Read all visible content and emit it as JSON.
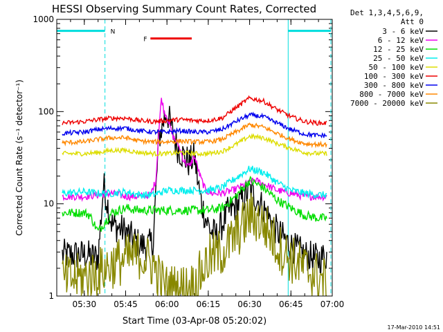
{
  "chart_data": {
    "type": "line",
    "title": "HESSI Observing Summary Count Rates, Corrected",
    "xlabel": "Start Time (03-Apr-08 05:20:02)",
    "ylabel": "Corrected Count Rate (s⁻¹ detector⁻¹)",
    "footer": "17-Mar-2010 14:51",
    "x_unit": "minutes after 05:20:02",
    "xlim": [
      0,
      100
    ],
    "ylim": [
      1,
      1000
    ],
    "y_scale": "log",
    "x_ticks": [
      {
        "label": "05:30",
        "x": 10
      },
      {
        "label": "05:45",
        "x": 25
      },
      {
        "label": "06:00",
        "x": 40
      },
      {
        "label": "06:15",
        "x": 55
      },
      {
        "label": "06:30",
        "x": 70
      },
      {
        "label": "06:45",
        "x": 85
      },
      {
        "label": "07:00",
        "x": 100
      }
    ],
    "y_ticks": [
      {
        "label": "1",
        "y": 1
      },
      {
        "label": "10",
        "y": 10
      },
      {
        "label": "100",
        "y": 100
      },
      {
        "label": "1000",
        "y": 1000
      }
    ],
    "legend_header": [
      "Det 1,3,4,5,6,9,",
      "Att 0"
    ],
    "legend_position": "right",
    "series": [
      {
        "name": "3 - 6 keV",
        "color": "#000000",
        "x": [
          2,
          10,
          15,
          17,
          20,
          25,
          30,
          33,
          35,
          37,
          39,
          40,
          42,
          44,
          46,
          48,
          50,
          52,
          54,
          56,
          58,
          62,
          66,
          70,
          74,
          76,
          80,
          85,
          90,
          95,
          98
        ],
        "y": [
          2.8,
          2.8,
          2.6,
          16,
          6,
          5,
          3.6,
          3.5,
          3.8,
          50,
          85,
          100,
          60,
          40,
          33,
          28,
          32,
          12,
          7,
          5,
          4.5,
          8,
          10,
          14,
          10,
          8,
          5,
          3.5,
          2.8,
          2.5,
          2.8
        ]
      },
      {
        "name": "6 - 12 keV",
        "color": "#ee00ee",
        "x": [
          2,
          10,
          15,
          20,
          25,
          30,
          34,
          36,
          37,
          38,
          39,
          40,
          42,
          44,
          46,
          48,
          50,
          52,
          54,
          56,
          60,
          64,
          68,
          72,
          76,
          80,
          85,
          90,
          95,
          98
        ],
        "y": [
          12,
          12,
          12.5,
          13,
          12,
          12,
          12.5,
          18,
          60,
          140,
          100,
          90,
          55,
          45,
          30,
          25,
          33,
          20,
          14,
          13,
          13,
          14,
          16,
          18,
          16,
          14,
          13,
          12,
          12,
          12
        ]
      },
      {
        "name": "12 - 25 keV",
        "color": "#00dd00",
        "x": [
          2,
          10,
          12,
          15,
          20,
          25,
          30,
          35,
          40,
          45,
          50,
          55,
          60,
          65,
          70,
          75,
          80,
          85,
          90,
          95,
          98
        ],
        "y": [
          8,
          8,
          7.5,
          5,
          8,
          9,
          8.5,
          8.5,
          8.5,
          8.5,
          8.5,
          8.5,
          9,
          12,
          18,
          15,
          11,
          9,
          7.5,
          7,
          7
        ]
      },
      {
        "name": "25 - 50 keV",
        "color": "#00eeee",
        "x": [
          2,
          10,
          15,
          20,
          25,
          30,
          35,
          40,
          45,
          50,
          55,
          60,
          65,
          70,
          75,
          80,
          85,
          90,
          95,
          98
        ],
        "y": [
          13,
          13.5,
          13,
          13,
          13.5,
          12.5,
          12.5,
          14,
          14,
          14,
          14,
          15,
          19,
          24,
          22,
          17,
          14,
          13,
          12.5,
          12.5
        ]
      },
      {
        "name": "50 - 100 keV",
        "color": "#dddd00",
        "x": [
          2,
          10,
          15,
          20,
          25,
          30,
          35,
          40,
          45,
          50,
          55,
          60,
          65,
          70,
          75,
          80,
          85,
          90,
          95,
          98
        ],
        "y": [
          35,
          35,
          36,
          38,
          38,
          36,
          35,
          35,
          36,
          35,
          35,
          37,
          44,
          54,
          52,
          45,
          40,
          36,
          35,
          35
        ]
      },
      {
        "name": "100 - 300 keV",
        "color": "#ee0000",
        "x": [
          2,
          10,
          15,
          20,
          25,
          30,
          35,
          40,
          45,
          50,
          55,
          60,
          65,
          70,
          75,
          80,
          85,
          90,
          95,
          98
        ],
        "y": [
          75,
          78,
          82,
          85,
          85,
          80,
          78,
          80,
          82,
          80,
          80,
          85,
          110,
          140,
          130,
          105,
          88,
          78,
          75,
          75
        ]
      },
      {
        "name": "300 - 800 keV",
        "color": "#0000ee",
        "x": [
          2,
          10,
          15,
          20,
          25,
          30,
          35,
          40,
          45,
          50,
          55,
          60,
          65,
          70,
          75,
          80,
          85,
          90,
          95,
          98
        ],
        "y": [
          58,
          60,
          64,
          66,
          66,
          62,
          60,
          60,
          62,
          60,
          60,
          64,
          78,
          92,
          88,
          75,
          64,
          57,
          55,
          55
        ]
      },
      {
        "name": "800 - 7000 keV",
        "color": "#ff8800",
        "x": [
          2,
          10,
          15,
          20,
          25,
          30,
          35,
          40,
          45,
          50,
          55,
          60,
          65,
          70,
          75,
          80,
          85,
          90,
          95,
          98
        ],
        "y": [
          46,
          47,
          50,
          52,
          52,
          48,
          47,
          47,
          48,
          47,
          47,
          50,
          60,
          72,
          68,
          58,
          50,
          45,
          44,
          44
        ]
      },
      {
        "name": "7000 - 20000 keV",
        "color": "#888800",
        "x": [
          2,
          10,
          15,
          20,
          25,
          30,
          35,
          38,
          40,
          45,
          50,
          55,
          60,
          62,
          65,
          68,
          70,
          72,
          75,
          78,
          80,
          85,
          90,
          95,
          98
        ],
        "y": [
          1.5,
          1.6,
          1.8,
          2.2,
          2.5,
          2.8,
          2.2,
          1.4,
          1.2,
          1.2,
          1.3,
          2.5,
          3,
          3.5,
          4.5,
          6,
          7.5,
          7,
          6,
          4.5,
          3.5,
          2.5,
          2,
          1.6,
          1.4
        ]
      }
    ],
    "intervals": [
      {
        "label": "",
        "color": "#00dddd",
        "x_start": 0,
        "x_end": 17.5,
        "y": 750
      },
      {
        "label": "N",
        "color": "#00dddd",
        "x_start": 17.5,
        "x_end": 17.5,
        "y": 750
      },
      {
        "label": "F",
        "color": "#ee0000",
        "x_start": 34,
        "x_end": 49,
        "y": 620
      },
      {
        "label": "",
        "color": "#00dddd",
        "x_start": 84,
        "x_end": 99.5,
        "y": 750
      }
    ],
    "vlines": [
      {
        "x": 17.5,
        "color": "#00dddd",
        "dashed": true
      },
      {
        "x": 84,
        "color": "#00dddd",
        "dashed": false
      },
      {
        "x": 99.5,
        "color": "#00dddd",
        "dashed": true
      }
    ]
  }
}
